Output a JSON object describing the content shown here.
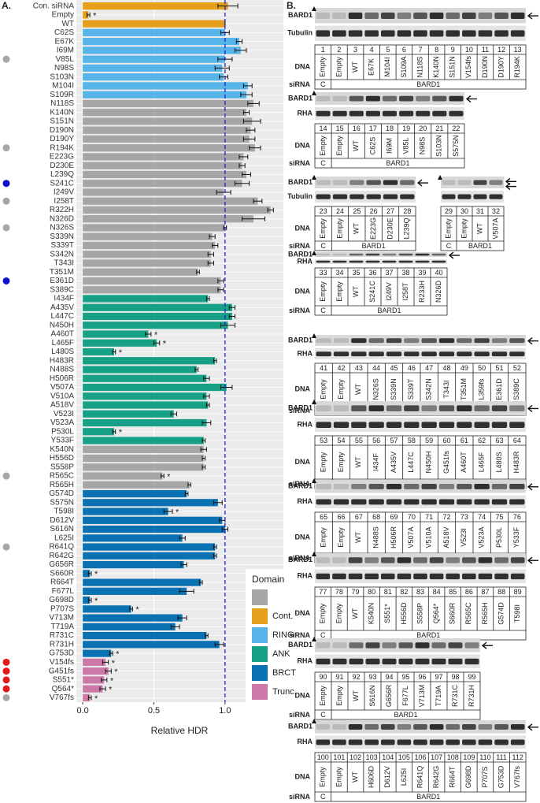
{
  "chart_data": {
    "type": "bar",
    "orientation": "horizontal",
    "panel_label": "A.",
    "x_label": "Relative HDR",
    "categories": [
      "Con. siRNA",
      "Empty",
      "WT",
      "C62S",
      "E67K",
      "I69M",
      "V85L",
      "N98S",
      "S103N",
      "M104I",
      "S109R",
      "N118S",
      "K140N",
      "S151N",
      "D190N",
      "D190Y",
      "R194K",
      "E223G",
      "D230E",
      "L239Q",
      "S241C",
      "I249V",
      "I258T",
      "R322H",
      "N326D",
      "N326S",
      "S339N",
      "S339T",
      "S342N",
      "T343I",
      "T351M",
      "E361D",
      "S389C",
      "I434F",
      "A435V",
      "L447C",
      "N450H",
      "A460T",
      "L465F",
      "L480S",
      "H483R",
      "N488S",
      "H506R",
      "V507A",
      "V510A",
      "A518V",
      "V523I",
      "V523A",
      "P530L",
      "Y533F",
      "K540N",
      "H556D",
      "S558P",
      "R565C",
      "R565H",
      "G574D",
      "S575N",
      "T598I",
      "D612V",
      "S616N",
      "L625I",
      "R641Q",
      "R642G",
      "G656R",
      "S660R",
      "R664T",
      "F677L",
      "G698D",
      "P707S",
      "V713M",
      "T719A",
      "R731C",
      "R731H",
      "G753D",
      "V154fs",
      "G451fs",
      "S551*",
      "Q564*",
      "V767fs"
    ],
    "values": [
      1.02,
      0.04,
      1.0,
      1.0,
      1.1,
      1.11,
      1.0,
      0.98,
      0.99,
      1.16,
      1.15,
      1.2,
      1.15,
      1.19,
      1.18,
      1.17,
      1.21,
      1.13,
      1.12,
      1.15,
      1.12,
      0.99,
      1.23,
      1.32,
      1.2,
      1.0,
      0.91,
      0.93,
      0.9,
      0.9,
      0.81,
      0.97,
      0.97,
      0.88,
      1.05,
      1.05,
      1.02,
      0.46,
      0.52,
      0.22,
      0.93,
      0.8,
      0.87,
      1.01,
      0.87,
      0.88,
      0.64,
      0.87,
      0.22,
      0.85,
      0.85,
      0.85,
      0.85,
      0.56,
      0.75,
      0.73,
      0.95,
      0.6,
      0.98,
      1.0,
      0.7,
      0.93,
      0.93,
      0.71,
      0.05,
      0.83,
      0.73,
      0.05,
      0.34,
      0.7,
      0.65,
      0.87,
      0.96,
      0.2,
      0.16,
      0.18,
      0.15,
      0.14,
      0.05
    ],
    "errors": [
      0.07,
      0.01,
      0.0,
      0.03,
      0.02,
      0.04,
      0.05,
      0.05,
      0.03,
      0.03,
      0.04,
      0.04,
      0.02,
      0.06,
      0.03,
      0.04,
      0.04,
      0.03,
      0.02,
      0.03,
      0.05,
      0.05,
      0.03,
      0.02,
      0.08,
      0.01,
      0.02,
      0.02,
      0.02,
      0.02,
      0.01,
      0.02,
      0.02,
      0.01,
      0.02,
      0.02,
      0.05,
      0.02,
      0.02,
      0.01,
      0.01,
      0.01,
      0.02,
      0.04,
      0.02,
      0.01,
      0.02,
      0.03,
      0.01,
      0.01,
      0.02,
      0.01,
      0.01,
      0.01,
      0.01,
      0.01,
      0.03,
      0.03,
      0.02,
      0.02,
      0.02,
      0.01,
      0.01,
      0.02,
      0.01,
      0.01,
      0.05,
      0.01,
      0.01,
      0.03,
      0.03,
      0.01,
      0.03,
      0.01,
      0.02,
      0.02,
      0.02,
      0.02,
      0.01
    ],
    "bar_colors": [
      "#e69f1a",
      "#e69f1a",
      "#e69f1a",
      "#56b4e9",
      "#56b4e9",
      "#56b4e9",
      "#56b4e9",
      "#56b4e9",
      "#56b4e9",
      "#56b4e9",
      "#56b4e9",
      "#a6a6a6",
      "#a6a6a6",
      "#a6a6a6",
      "#a6a6a6",
      "#a6a6a6",
      "#a6a6a6",
      "#a6a6a6",
      "#a6a6a6",
      "#a6a6a6",
      "#a6a6a6",
      "#a6a6a6",
      "#a6a6a6",
      "#a6a6a6",
      "#a6a6a6",
      "#a6a6a6",
      "#a6a6a6",
      "#a6a6a6",
      "#a6a6a6",
      "#a6a6a6",
      "#a6a6a6",
      "#a6a6a6",
      "#a6a6a6",
      "#16a085",
      "#16a085",
      "#16a085",
      "#16a085",
      "#16a085",
      "#16a085",
      "#16a085",
      "#16a085",
      "#16a085",
      "#16a085",
      "#16a085",
      "#16a085",
      "#16a085",
      "#16a085",
      "#16a085",
      "#16a085",
      "#16a085",
      "#a6a6a6",
      "#a6a6a6",
      "#a6a6a6",
      "#a6a6a6",
      "#a6a6a6",
      "#0a72b2",
      "#0a72b2",
      "#0a72b2",
      "#0a72b2",
      "#0a72b2",
      "#0a72b2",
      "#0a72b2",
      "#0a72b2",
      "#0a72b2",
      "#0a72b2",
      "#0a72b2",
      "#0a72b2",
      "#0a72b2",
      "#0a72b2",
      "#0a72b2",
      "#0a72b2",
      "#0a72b2",
      "#0a72b2",
      "#0a72b2",
      "#cc79a7",
      "#cc79a7",
      "#cc79a7",
      "#cc79a7",
      "#cc79a7"
    ],
    "significance": [
      null,
      "*",
      null,
      null,
      null,
      null,
      null,
      null,
      null,
      null,
      null,
      null,
      null,
      null,
      null,
      null,
      null,
      null,
      null,
      null,
      null,
      null,
      null,
      null,
      null,
      null,
      null,
      null,
      null,
      null,
      null,
      null,
      null,
      null,
      null,
      null,
      null,
      "*",
      "*",
      "*",
      null,
      null,
      null,
      null,
      null,
      null,
      null,
      null,
      "*",
      null,
      null,
      null,
      null,
      "*",
      null,
      null,
      null,
      "*",
      null,
      null,
      null,
      null,
      null,
      null,
      "*",
      null,
      null,
      "*",
      "*",
      null,
      null,
      null,
      null,
      "*",
      "*",
      "*",
      "*",
      "*",
      "*"
    ],
    "markers": [
      null,
      null,
      null,
      null,
      null,
      null,
      "#a6a6a6",
      null,
      null,
      null,
      null,
      null,
      null,
      null,
      null,
      null,
      "#a6a6a6",
      null,
      null,
      null,
      "#1010cc",
      null,
      "#a6a6a6",
      null,
      null,
      "#a6a6a6",
      null,
      null,
      null,
      null,
      null,
      "#1010cc",
      null,
      null,
      null,
      null,
      null,
      null,
      null,
      null,
      null,
      null,
      null,
      null,
      null,
      null,
      null,
      null,
      null,
      null,
      null,
      null,
      null,
      "#a6a6a6",
      null,
      null,
      null,
      null,
      null,
      null,
      null,
      "#a6a6a6",
      null,
      null,
      null,
      null,
      null,
      null,
      null,
      null,
      null,
      null,
      null,
      null,
      "#e31a1c",
      "#e31a1c",
      "#e31a1c",
      "#e31a1c",
      "#a6a6a6"
    ],
    "xlim": [
      -0.045,
      1.41
    ],
    "xticks": [
      {
        "value": 0,
        "label": "0.0"
      },
      0.5,
      {
        "value": 1,
        "label": "1.0"
      }
    ],
    "grid": true,
    "reference_line": {
      "value": 1,
      "color": "#2020cc"
    },
    "legend": {
      "title": "Domain",
      "position": "bottom-right",
      "items": [
        {
          "name": null,
          "color": "#a6a6a6"
        },
        {
          "name": "Cont.",
          "color": "#e69f1a"
        },
        {
          "name": "RING",
          "color": "#56b4e9"
        },
        {
          "name": "ANK",
          "color": "#16a085"
        },
        {
          "name": "BRCT",
          "color": "#0a72b2"
        },
        {
          "name": "Trunc.",
          "color": "#cc79a7"
        }
      ]
    }
  },
  "panel_b": {
    "panel_label": "B.",
    "groups": [
      {
        "row_labels": [
          "BARD1",
          "Tubulin"
        ],
        "table_labels": [
          "DNA",
          "siRNA"
        ],
        "lanes": [
          1,
          2,
          3,
          4,
          5,
          6,
          7,
          8,
          9,
          10,
          11,
          12,
          13
        ],
        "dna": [
          "Empty",
          "Empty",
          "WT",
          "E67K",
          "M104I",
          "S109A",
          "N118S",
          "K140N",
          "S151N",
          "V154fs",
          "D190N",
          "D190Y",
          "R194K"
        ],
        "sirna": [
          "C",
          "BARD1"
        ]
      },
      {
        "row_labels": [
          "BARD1",
          "RHA"
        ],
        "table_labels": [
          "DNA",
          "siRNA"
        ],
        "lanes": [
          14,
          15,
          16,
          17,
          18,
          19,
          20,
          21,
          22
        ],
        "dna": [
          "Empty",
          "Empty",
          "WT",
          "C62S",
          "I69M",
          "V85L",
          "N98S",
          "S103N",
          "S575N"
        ],
        "sirna": [
          "C",
          "BARD1"
        ]
      },
      {
        "row_labels": [
          "BARD1",
          "Tubulin"
        ],
        "table_labels": [
          "DNA",
          "siRNA"
        ],
        "lanes": [
          23,
          24,
          25,
          26,
          27,
          28
        ],
        "dna": [
          "Empty",
          "Empty",
          "WT",
          "E223G",
          "D230E",
          "L239Q"
        ],
        "sirna": [
          "C",
          "BARD1"
        ]
      },
      {
        "lanes": [
          29,
          30,
          31,
          32
        ],
        "dna": [
          "Empty",
          "Empty",
          "WT",
          "V507A"
        ],
        "sirna": [
          "C",
          "BARD1"
        ]
      },
      {
        "row_labels": [
          "BARD1",
          "RHA"
        ],
        "table_labels": [
          "DNA",
          "siRNA"
        ],
        "lanes": [
          33,
          34,
          35,
          36,
          37,
          38,
          39,
          40
        ],
        "dna": [
          "Empty",
          "Empty",
          "WT",
          "S241C",
          "I249V",
          "I258T",
          "R233H",
          "N326D"
        ],
        "sirna": [
          "C",
          "BARD1"
        ]
      },
      {
        "row_labels": [
          "BARD1",
          "RHA"
        ],
        "table_labels": [
          "DNA",
          "siRNA"
        ],
        "lanes": [
          41,
          42,
          43,
          44,
          45,
          46,
          47,
          48,
          49,
          50,
          51,
          52
        ],
        "dna": [
          "Empty",
          "Empty",
          "WT",
          "N326S",
          "S339N",
          "S339T",
          "S342N",
          "T343I",
          "T351M",
          "L359fs",
          "E361D",
          "S389C"
        ],
        "sirna": [
          "C",
          "BARD1"
        ]
      },
      {
        "row_labels": [
          "BARD1",
          "RHA"
        ],
        "table_labels": [
          "DNA",
          "siRNA"
        ],
        "lanes": [
          53,
          54,
          55,
          56,
          57,
          58,
          59,
          60,
          61,
          62,
          63,
          64
        ],
        "dna": [
          "Empty",
          "Empty",
          "WT",
          "I434F",
          "A435V",
          "L447C",
          "N450H",
          "G451fs",
          "A460T",
          "L465F",
          "L480S",
          "H483R"
        ],
        "sirna": [
          "C",
          "BARD1"
        ]
      },
      {
        "row_labels": [
          "BARD1",
          "RHA"
        ],
        "table_labels": [
          "DNA",
          "siRNA"
        ],
        "lanes": [
          65,
          66,
          67,
          68,
          69,
          70,
          71,
          72,
          73,
          74,
          75,
          76
        ],
        "dna": [
          "Empty",
          "Empty",
          "WT",
          "N488S",
          "H506R",
          "V507A",
          "V510A",
          "A518V",
          "V523I",
          "V523A",
          "P530L",
          "Y533F"
        ],
        "sirna": [
          "C",
          "BARD1"
        ]
      },
      {
        "row_labels": [
          "BARD1",
          "RHA"
        ],
        "table_labels": [
          "DNA",
          "siRNA"
        ],
        "lanes": [
          77,
          78,
          79,
          80,
          81,
          82,
          83,
          84,
          85,
          86,
          87,
          88,
          89
        ],
        "dna": [
          "Empty",
          "Empty",
          "WT",
          "K540N",
          "S551*",
          "H556D",
          "S558P",
          "Q564*",
          "S660R",
          "R565C",
          "R565H",
          "G574D",
          "T598I"
        ],
        "sirna": [
          "C",
          "BARD1"
        ]
      },
      {
        "row_labels": [
          "BARD1",
          "RHA"
        ],
        "table_labels": [
          "DNA",
          "siRNA"
        ],
        "lanes": [
          90,
          91,
          92,
          93,
          94,
          95,
          96,
          97,
          98,
          99
        ],
        "dna": [
          "Empty",
          "Empty",
          "WT",
          "S616N",
          "G656R",
          "F677L",
          "V713M",
          "T719A",
          "R731C",
          "R731H"
        ],
        "sirna": [
          "C",
          "BARD1"
        ]
      },
      {
        "row_labels": [
          "BARD1",
          "RHA"
        ],
        "table_labels": [
          "DNA",
          "siRNA"
        ],
        "lanes": [
          100,
          101,
          102,
          103,
          104,
          105,
          106,
          107,
          108,
          109,
          110,
          111,
          112
        ],
        "dna": [
          "Empty",
          "Empty",
          "WT",
          "H606D",
          "D612V",
          "L625I",
          "R641Q",
          "R642G",
          "R664T",
          "G698D",
          "P707S",
          "G753D",
          "V767fs"
        ],
        "sirna": [
          "C",
          "BARD1"
        ]
      }
    ]
  }
}
